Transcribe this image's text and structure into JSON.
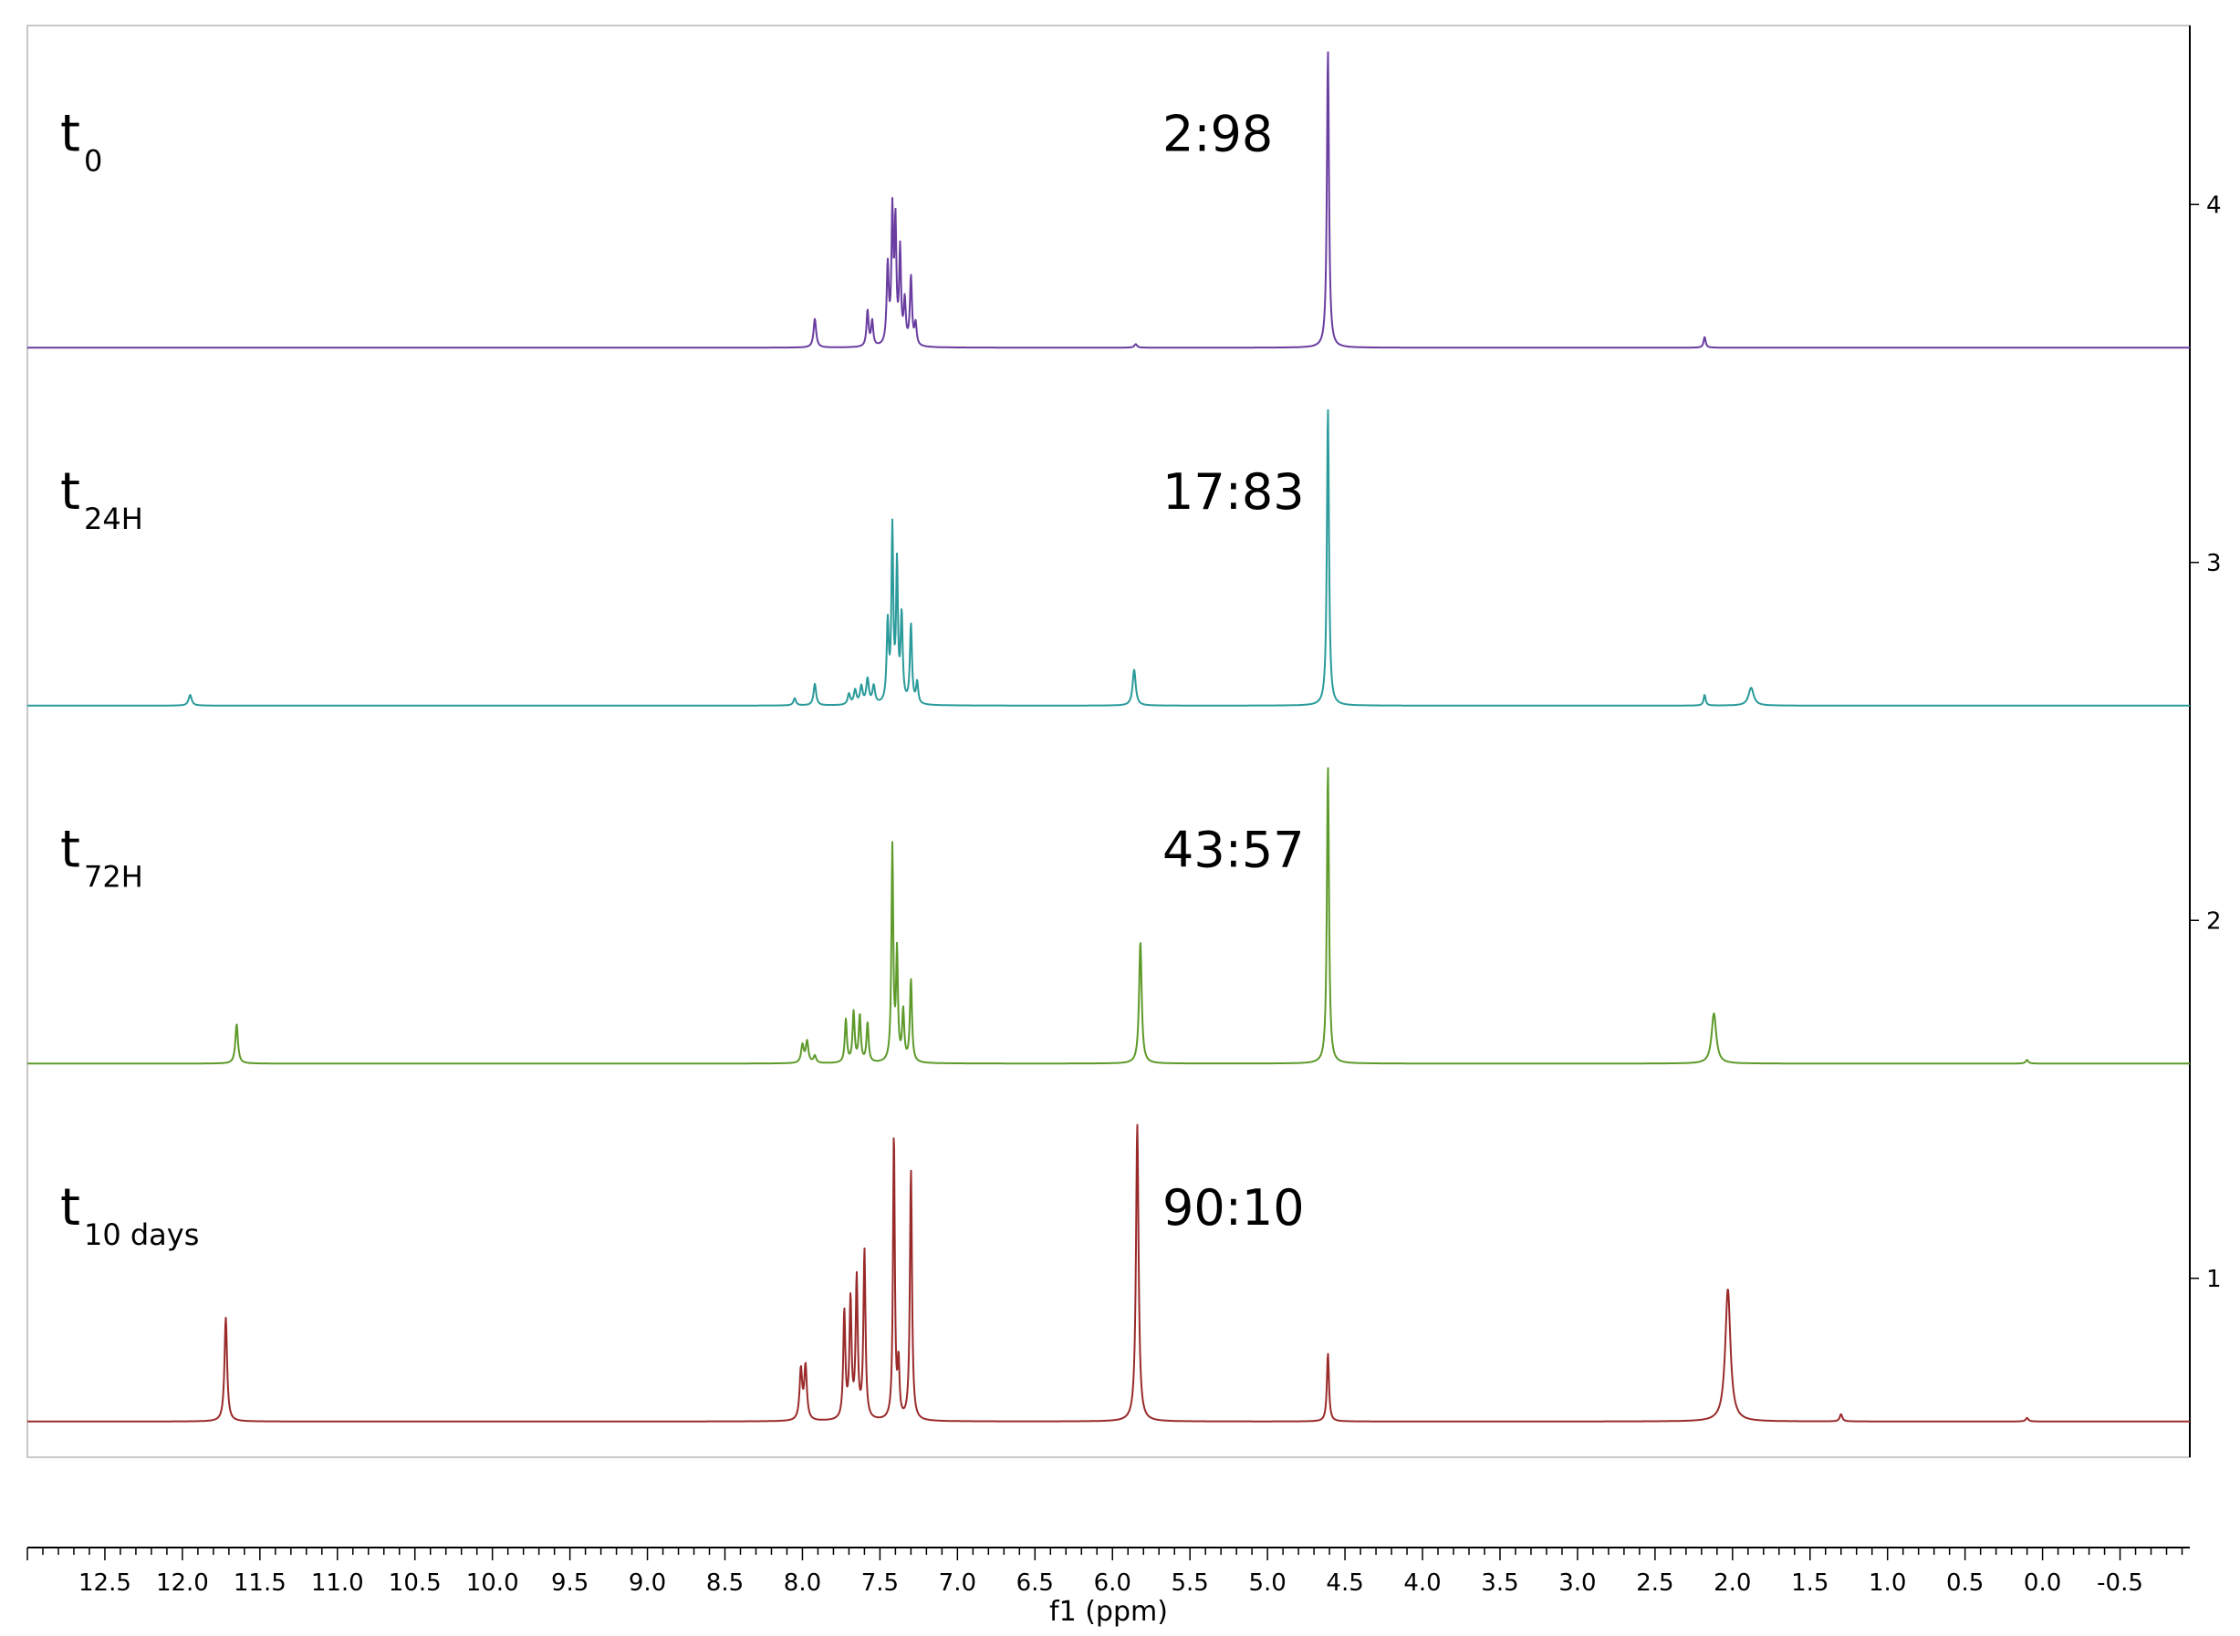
{
  "chart_data": {
    "type": "line",
    "xlabel": "f1 (ppm)",
    "x_reversed": true,
    "xlim": [
      13.0,
      -0.95
    ],
    "x_ticks": [
      12.5,
      12.0,
      11.5,
      11.0,
      10.5,
      10.0,
      9.5,
      9.0,
      8.5,
      8.0,
      7.5,
      7.0,
      6.5,
      6.0,
      5.5,
      5.0,
      4.5,
      4.0,
      3.5,
      3.0,
      2.5,
      2.0,
      1.5,
      1.0,
      0.5,
      0.0,
      -0.5
    ],
    "x_tick_labels": [
      "12.5",
      "12.0",
      "11.5",
      "11.0",
      "10.5",
      "10.0",
      "9.5",
      "9.0",
      "8.5",
      "8.0",
      "7.5",
      "7.0",
      "6.5",
      "6.0",
      "5.5",
      "5.0",
      "4.5",
      "4.0",
      "3.5",
      "3.0",
      "2.5",
      "2.0",
      "1.5",
      "1.0",
      "0.5",
      "0.0",
      "-0.5"
    ],
    "ylim": [
      0.5,
      4.5
    ],
    "y_ticks": [
      1,
      2,
      3,
      4
    ],
    "y_tick_labels": [
      "1",
      "2",
      "3",
      "4"
    ],
    "grid": false,
    "series": [
      {
        "label_main": "t",
        "label_sub": "0",
        "ratio": "2:98",
        "color": "#6a3da0",
        "baseline": 3.6,
        "peaks": [
          [
            7.92,
            0.08,
            0.01
          ],
          [
            7.58,
            0.1,
            0.008
          ],
          [
            7.55,
            0.07,
            0.008
          ],
          [
            7.45,
            0.22,
            0.008
          ],
          [
            7.42,
            0.36,
            0.007
          ],
          [
            7.4,
            0.33,
            0.007
          ],
          [
            7.37,
            0.26,
            0.007
          ],
          [
            7.34,
            0.12,
            0.008
          ],
          [
            7.3,
            0.19,
            0.008
          ],
          [
            7.27,
            0.06,
            0.008
          ],
          [
            5.85,
            0.01,
            0.01
          ],
          [
            4.61,
            0.83,
            0.008
          ],
          [
            2.18,
            0.03,
            0.008
          ]
        ]
      },
      {
        "label_main": "t",
        "label_sub": "24H",
        "ratio": "17:83",
        "color": "#2a9a9a",
        "baseline": 2.6,
        "peaks": [
          [
            11.95,
            0.03,
            0.012
          ],
          [
            8.05,
            0.02,
            0.01
          ],
          [
            7.92,
            0.06,
            0.01
          ],
          [
            7.7,
            0.03,
            0.01
          ],
          [
            7.66,
            0.04,
            0.01
          ],
          [
            7.62,
            0.05,
            0.01
          ],
          [
            7.58,
            0.07,
            0.01
          ],
          [
            7.54,
            0.05,
            0.01
          ],
          [
            7.45,
            0.22,
            0.008
          ],
          [
            7.42,
            0.48,
            0.007
          ],
          [
            7.39,
            0.38,
            0.007
          ],
          [
            7.36,
            0.24,
            0.008
          ],
          [
            7.3,
            0.22,
            0.008
          ],
          [
            7.26,
            0.06,
            0.008
          ],
          [
            5.86,
            0.1,
            0.012
          ],
          [
            4.61,
            0.83,
            0.008
          ],
          [
            2.18,
            0.03,
            0.008
          ],
          [
            1.88,
            0.05,
            0.02
          ]
        ]
      },
      {
        "label_main": "t",
        "label_sub": "72H",
        "ratio": "43:57",
        "color": "#5d9a2a",
        "baseline": 1.6,
        "peaks": [
          [
            11.65,
            0.11,
            0.01
          ],
          [
            8.0,
            0.05,
            0.01
          ],
          [
            7.97,
            0.06,
            0.01
          ],
          [
            7.92,
            0.02,
            0.01
          ],
          [
            7.72,
            0.12,
            0.008
          ],
          [
            7.67,
            0.14,
            0.008
          ],
          [
            7.63,
            0.13,
            0.008
          ],
          [
            7.58,
            0.11,
            0.008
          ],
          [
            7.42,
            0.6,
            0.007
          ],
          [
            7.39,
            0.3,
            0.007
          ],
          [
            7.35,
            0.14,
            0.008
          ],
          [
            7.3,
            0.23,
            0.008
          ],
          [
            5.82,
            0.34,
            0.01
          ],
          [
            4.61,
            0.83,
            0.008
          ],
          [
            2.12,
            0.14,
            0.018
          ],
          [
            0.1,
            0.01,
            0.01
          ]
        ]
      },
      {
        "label_main": "t",
        "label_sub": "10 days",
        "ratio": "90:10",
        "color": "#9a2a2a",
        "baseline": 0.6,
        "peaks": [
          [
            11.72,
            0.29,
            0.01
          ],
          [
            8.01,
            0.14,
            0.01
          ],
          [
            7.98,
            0.15,
            0.01
          ],
          [
            7.73,
            0.3,
            0.008
          ],
          [
            7.69,
            0.33,
            0.008
          ],
          [
            7.65,
            0.39,
            0.008
          ],
          [
            7.6,
            0.47,
            0.008
          ],
          [
            7.41,
            0.8,
            0.007
          ],
          [
            7.38,
            0.15,
            0.007
          ],
          [
            7.3,
            0.7,
            0.008
          ],
          [
            5.84,
            0.83,
            0.01
          ],
          [
            4.61,
            0.19,
            0.008
          ],
          [
            2.03,
            0.37,
            0.02
          ],
          [
            1.3,
            0.02,
            0.01
          ],
          [
            0.1,
            0.01,
            0.01
          ]
        ]
      }
    ]
  }
}
